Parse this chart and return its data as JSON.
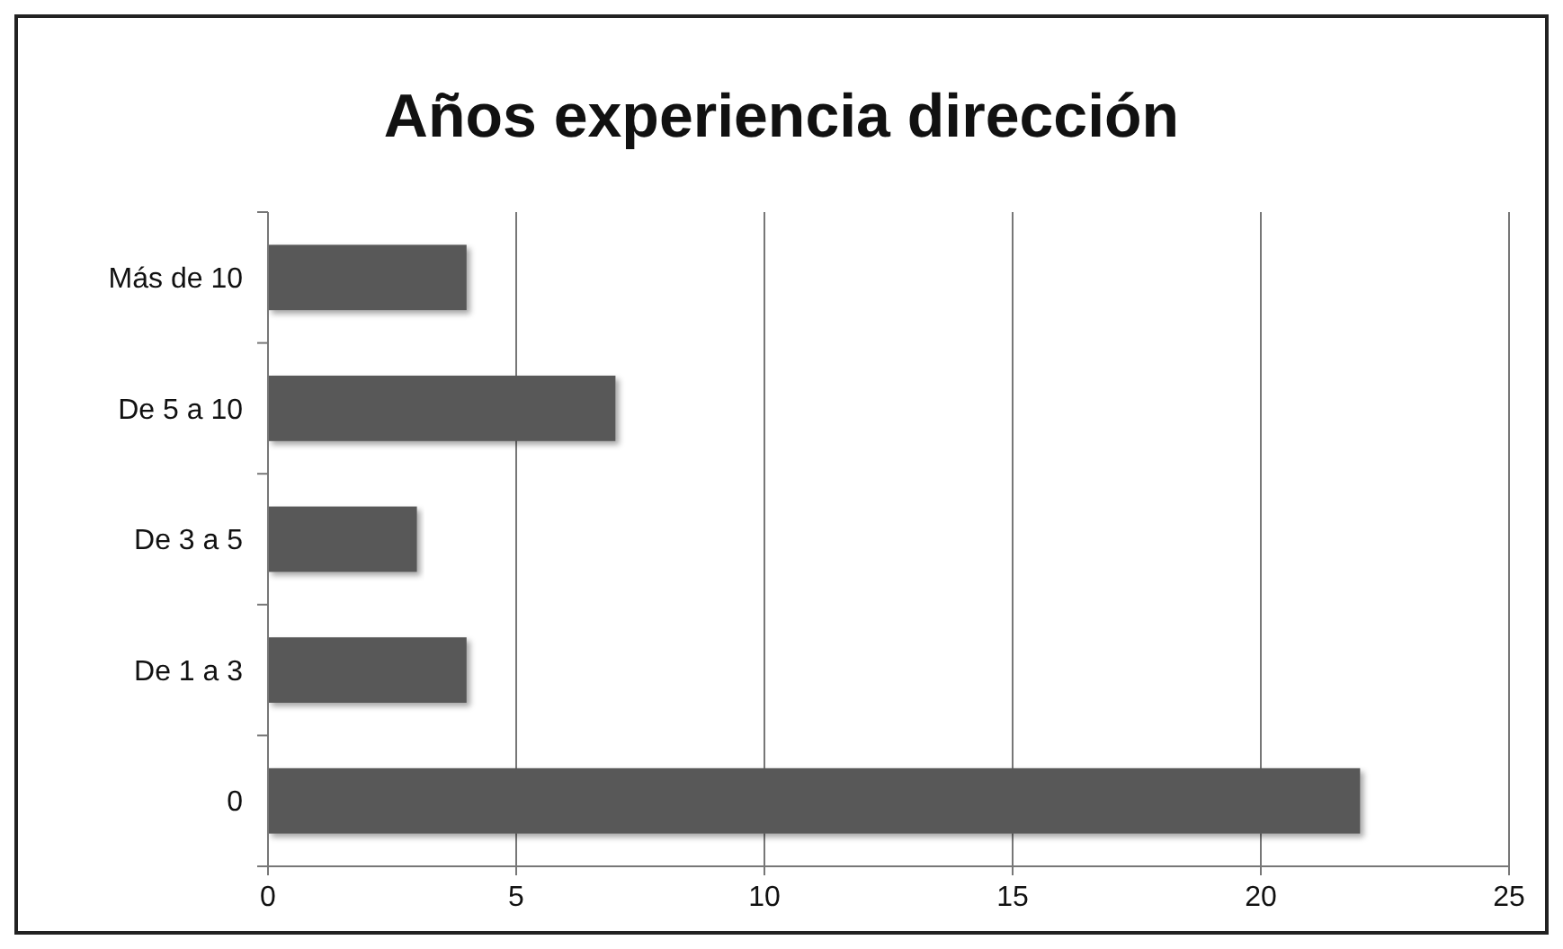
{
  "chart_data": {
    "type": "bar",
    "orientation": "horizontal",
    "title": "Años experiencia dirección",
    "categories": [
      "Más de 10",
      "De 5 a 10",
      "De 3 a 5",
      "De 1 a 3",
      "0"
    ],
    "values": [
      4,
      7,
      3,
      4,
      22
    ],
    "color": "#595959",
    "xlim": [
      0,
      25
    ],
    "xticks": [
      0,
      5,
      10,
      15,
      20,
      25
    ],
    "grid": "x"
  }
}
